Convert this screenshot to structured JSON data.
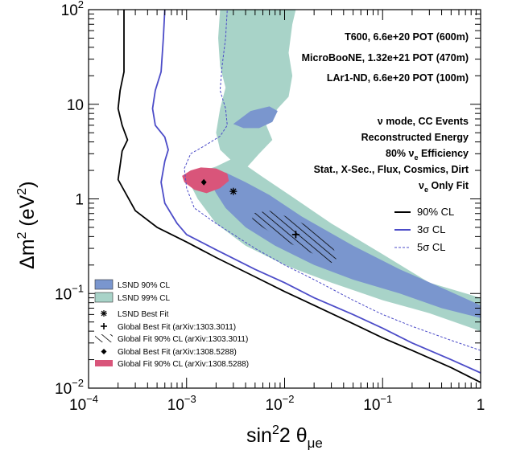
{
  "chart_data": {
    "type": "contour",
    "x_axis": {
      "label": "sin",
      "label_sup": "2",
      "label_mid": "2 θ",
      "label_sub": "μe",
      "scale": "log",
      "range": [
        0.0001,
        1
      ],
      "ticks": [
        {
          "v": 0.0001,
          "base": "10",
          "exp": "−4"
        },
        {
          "v": 0.001,
          "base": "10",
          "exp": "−3"
        },
        {
          "v": 0.01,
          "base": "10",
          "exp": "−2"
        },
        {
          "v": 0.1,
          "base": "10",
          "exp": "−1"
        },
        {
          "v": 1,
          "base": "1",
          "exp": ""
        }
      ]
    },
    "y_axis": {
      "label": "Δm",
      "label_sup1": "2",
      "label_mid": " (eV",
      "label_sup2": "2",
      "label_end": ")",
      "scale": "log",
      "range": [
        0.01,
        100
      ],
      "ticks": [
        {
          "v": 0.01,
          "base": "10",
          "exp": "−2"
        },
        {
          "v": 0.1,
          "base": "10",
          "exp": "−1"
        },
        {
          "v": 1,
          "base": "1",
          "exp": ""
        },
        {
          "v": 10,
          "base": "10",
          "exp": ""
        },
        {
          "v": 100,
          "base": "10",
          "exp": "2"
        }
      ]
    },
    "annotations": [
      "T600, 6.6e+20 POT (600m)",
      "MicroBooNE, 1.32e+21 POT (470m)",
      "LAr1-ND, 6.6e+20 POT (100m)",
      "ν mode, CC Events",
      "Reconstructed Energy",
      "80% ν_e Efficiency",
      "Stat., X-Sec., Flux, Cosmics, Dirt",
      "ν_e Only Fit"
    ],
    "annotation_parts": {
      "eff_pre": "80% ν",
      "eff_sub": "e",
      "eff_post": " Efficiency",
      "fit_pre": "ν",
      "fit_sub": "e",
      "fit_post": " Only Fit"
    },
    "sensitivity_legend": [
      {
        "label": "90% CL",
        "style": "solid-black"
      },
      {
        "label": "3σ CL",
        "style": "solid-blue"
      },
      {
        "label": "5σ CL",
        "style": "dashed-blue"
      }
    ],
    "regions_legend": [
      {
        "label": "LSND 90% CL",
        "style": "fill-lsnd90"
      },
      {
        "label": "LSND 99% CL",
        "style": "fill-lsnd99"
      },
      {
        "label": "LSND Best Fit",
        "style": "asterisk"
      },
      {
        "label": "Global Best Fit (arXiv:1303.3011)",
        "style": "plus"
      },
      {
        "label": "Global Fit 90% CL (arXiv:1303.3011)",
        "style": "hatch"
      },
      {
        "label": "Global Best Fit (arXiv:1308.5288)",
        "style": "diamond"
      },
      {
        "label": "Global Fit 90% CL (arXiv:1308.5288)",
        "style": "fill-pink"
      }
    ],
    "best_fit_points": [
      {
        "name": "LSND Best Fit",
        "x": 0.003,
        "y": 1.2,
        "marker": "asterisk"
      },
      {
        "name": "Global Best Fit (arXiv:1303.3011)",
        "x": 0.013,
        "y": 0.42,
        "marker": "plus"
      },
      {
        "name": "Global Best Fit (arXiv:1308.5288)",
        "x": 0.0015,
        "y": 1.5,
        "marker": "diamond"
      }
    ],
    "series": [
      {
        "name": "90% CL",
        "color": "#000000",
        "dash": false,
        "points": [
          [
            1,
            0.0115
          ],
          [
            0.5,
            0.0165
          ],
          [
            0.2,
            0.025
          ],
          [
            0.1,
            0.034
          ],
          [
            0.05,
            0.048
          ],
          [
            0.02,
            0.075
          ],
          [
            0.01,
            0.105
          ],
          [
            0.005,
            0.15
          ],
          [
            0.002,
            0.24
          ],
          [
            0.001,
            0.35
          ],
          [
            0.0005,
            0.5
          ],
          [
            0.0003,
            0.75
          ],
          [
            0.0002,
            1.6
          ],
          [
            0.00022,
            3.2
          ],
          [
            0.00025,
            4.2
          ],
          [
            0.00022,
            6
          ],
          [
            0.0002,
            9
          ],
          [
            0.00021,
            14
          ],
          [
            0.00023,
            22
          ],
          [
            0.00023,
            40
          ],
          [
            0.00023,
            100
          ]
        ]
      },
      {
        "name": "3σ CL",
        "color": "#4c4cc8",
        "dash": false,
        "points": [
          [
            1,
            0.0145
          ],
          [
            0.5,
            0.02
          ],
          [
            0.2,
            0.03
          ],
          [
            0.1,
            0.043
          ],
          [
            0.05,
            0.06
          ],
          [
            0.02,
            0.09
          ],
          [
            0.01,
            0.13
          ],
          [
            0.005,
            0.18
          ],
          [
            0.002,
            0.29
          ],
          [
            0.001,
            0.42
          ],
          [
            0.0008,
            0.55
          ],
          [
            0.0006,
            0.9
          ],
          [
            0.00055,
            1.5
          ],
          [
            0.0006,
            2.5
          ],
          [
            0.00065,
            3.3
          ],
          [
            0.0006,
            4.5
          ],
          [
            0.00048,
            6
          ],
          [
            0.00045,
            9
          ],
          [
            0.00048,
            14
          ],
          [
            0.00055,
            22
          ],
          [
            0.00058,
            50
          ],
          [
            0.0006,
            100
          ]
        ]
      },
      {
        "name": "5σ CL",
        "color": "#4c4cc8",
        "dash": true,
        "points": [
          [
            1,
            0.025
          ],
          [
            0.5,
            0.032
          ],
          [
            0.2,
            0.045
          ],
          [
            0.1,
            0.06
          ],
          [
            0.05,
            0.085
          ],
          [
            0.02,
            0.14
          ],
          [
            0.01,
            0.2
          ],
          [
            0.005,
            0.3
          ],
          [
            0.002,
            0.55
          ],
          [
            0.0012,
            0.8
          ],
          [
            0.001,
            1.3
          ],
          [
            0.00095,
            2.1
          ],
          [
            0.0011,
            3.0
          ],
          [
            0.0015,
            3.6
          ],
          [
            0.0022,
            4.6
          ],
          [
            0.0026,
            6
          ],
          [
            0.0025,
            9
          ],
          [
            0.0022,
            14
          ],
          [
            0.0023,
            25
          ],
          [
            0.0025,
            50
          ],
          [
            0.0026,
            100
          ]
        ]
      }
    ],
    "regions": [
      {
        "name": "LSND 99% CL",
        "color": "#a8d3c8",
        "points": [
          [
            0.0012,
            1.85
          ],
          [
            0.002,
            2.2
          ],
          [
            0.0028,
            2.6
          ],
          [
            0.0022,
            3.3
          ],
          [
            0.002,
            5
          ],
          [
            0.0022,
            9
          ],
          [
            0.0025,
            15
          ],
          [
            0.0022,
            25
          ],
          [
            0.0021,
            50
          ],
          [
            0.0022,
            100
          ],
          [
            0.013,
            100
          ],
          [
            0.012,
            70
          ],
          [
            0.011,
            35
          ],
          [
            0.012,
            20
          ],
          [
            0.011,
            12
          ],
          [
            0.0085,
            9
          ],
          [
            0.0065,
            6
          ],
          [
            0.0075,
            4.2
          ],
          [
            0.0055,
            3.0
          ],
          [
            0.0042,
            2.2
          ],
          [
            0.006,
            1.7
          ],
          [
            0.012,
            1.05
          ],
          [
            0.03,
            0.55
          ],
          [
            0.1,
            0.26
          ],
          [
            0.3,
            0.13
          ],
          [
            1,
            0.09
          ],
          [
            1,
            0.04
          ],
          [
            0.3,
            0.062
          ],
          [
            0.1,
            0.085
          ],
          [
            0.03,
            0.13
          ],
          [
            0.01,
            0.2
          ],
          [
            0.004,
            0.32
          ],
          [
            0.002,
            0.55
          ],
          [
            0.0013,
            1.0
          ],
          [
            0.0011,
            1.4
          ]
        ]
      },
      {
        "name": "LSND 90% CL",
        "color": "#7a96ce",
        "points": [
          [
            0.0017,
            1.6
          ],
          [
            0.0025,
            1.9
          ],
          [
            0.004,
            1.5
          ],
          [
            0.007,
            1.1
          ],
          [
            0.015,
            0.65
          ],
          [
            0.05,
            0.32
          ],
          [
            0.15,
            0.18
          ],
          [
            0.4,
            0.115
          ],
          [
            1,
            0.075
          ],
          [
            1,
            0.055
          ],
          [
            0.4,
            0.07
          ],
          [
            0.15,
            0.1
          ],
          [
            0.05,
            0.14
          ],
          [
            0.02,
            0.2
          ],
          [
            0.008,
            0.32
          ],
          [
            0.004,
            0.5
          ],
          [
            0.0025,
            0.8
          ],
          [
            0.002,
            1.15
          ]
        ]
      },
      {
        "name": "Global Fit 90% CL (arXiv:1308.5288)",
        "color": "#d9557a",
        "points": [
          [
            0.0009,
            1.75
          ],
          [
            0.0011,
            2.0
          ],
          [
            0.0014,
            2.15
          ],
          [
            0.002,
            2.1
          ],
          [
            0.0026,
            1.85
          ],
          [
            0.0027,
            1.55
          ],
          [
            0.0022,
            1.3
          ],
          [
            0.0016,
            1.15
          ],
          [
            0.0012,
            1.25
          ],
          [
            0.00095,
            1.5
          ]
        ]
      },
      {
        "name": "LSND 99% CL upper island",
        "color": "#a8d3c8",
        "points": [
          [
            0.0024,
            40
          ],
          [
            0.0028,
            60
          ],
          [
            0.0034,
            80
          ],
          [
            0.0045,
            95
          ],
          [
            0.006,
            100
          ],
          [
            0.009,
            100
          ],
          [
            0.011,
            80
          ],
          [
            0.01,
            55
          ],
          [
            0.008,
            42
          ],
          [
            0.005,
            38
          ],
          [
            0.0032,
            36
          ]
        ]
      },
      {
        "name": "LSND 90% CL upper island",
        "color": "#7a96ce",
        "points": [
          [
            0.003,
            6.2
          ],
          [
            0.0045,
            8.5
          ],
          [
            0.007,
            9.5
          ],
          [
            0.0085,
            8.5
          ],
          [
            0.0075,
            6.5
          ],
          [
            0.0055,
            5.6
          ],
          [
            0.0038,
            5.6
          ]
        ]
      }
    ],
    "hatch_region": {
      "name": "Global Fit 90% CL (arXiv:1303.3011)",
      "points": [
        [
          0.0045,
          0.7
        ],
        [
          0.007,
          0.75
        ],
        [
          0.012,
          0.62
        ],
        [
          0.02,
          0.48
        ],
        [
          0.03,
          0.33
        ],
        [
          0.035,
          0.24
        ],
        [
          0.03,
          0.21
        ],
        [
          0.02,
          0.26
        ],
        [
          0.012,
          0.33
        ],
        [
          0.007,
          0.45
        ],
        [
          0.0048,
          0.58
        ]
      ]
    }
  }
}
